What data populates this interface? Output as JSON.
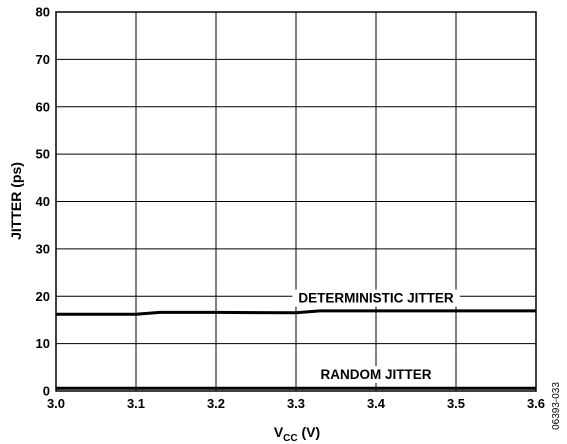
{
  "chart_data": {
    "type": "line",
    "title": "",
    "xlabel_main": "V",
    "xlabel_sub": "CC",
    "xlabel_unit": " (V)",
    "ylabel": "JITTER (ps)",
    "xlim": [
      3.0,
      3.6
    ],
    "ylim": [
      0,
      80
    ],
    "x_ticks": [
      3.0,
      3.1,
      3.2,
      3.3,
      3.4,
      3.5,
      3.6
    ],
    "x_tick_labels": [
      "3.0",
      "3.1",
      "3.2",
      "3.3",
      "3.4",
      "3.5",
      "3.6"
    ],
    "y_ticks": [
      0,
      10,
      20,
      30,
      40,
      50,
      60,
      70,
      80
    ],
    "y_tick_labels": [
      "0",
      "10",
      "20",
      "30",
      "40",
      "50",
      "60",
      "70",
      "80"
    ],
    "grid": true,
    "series": [
      {
        "name": "DETERMINISTIC JITTER",
        "color": "#000000",
        "x": [
          3.0,
          3.1,
          3.13,
          3.2,
          3.3,
          3.33,
          3.4,
          3.5,
          3.6
        ],
        "y": [
          16.2,
          16.2,
          16.6,
          16.6,
          16.5,
          16.9,
          16.9,
          16.9,
          16.9
        ],
        "label_at": [
          3.4,
          19.7
        ]
      },
      {
        "name": "RANDOM JITTER",
        "color": "#000000",
        "x": [
          3.0,
          3.1,
          3.2,
          3.3,
          3.4,
          3.5,
          3.6
        ],
        "y": [
          0.6,
          0.6,
          0.6,
          0.6,
          0.6,
          0.6,
          0.6
        ],
        "label_at": [
          3.4,
          3.6
        ]
      }
    ],
    "figure_id": "06393-033"
  }
}
